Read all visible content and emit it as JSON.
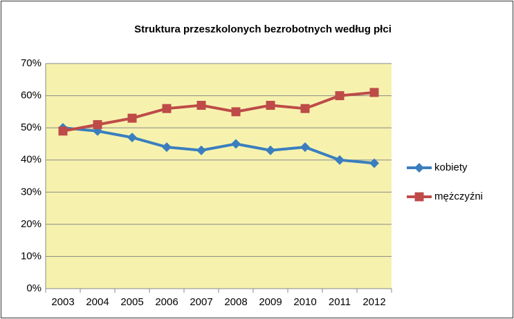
{
  "chart_data": {
    "type": "line",
    "title": "Struktura przeszkolonych bezrobotnych według płci",
    "categories": [
      "2003",
      "2004",
      "2005",
      "2006",
      "2007",
      "2008",
      "2009",
      "2010",
      "2011",
      "2012"
    ],
    "series": [
      {
        "name": "kobiety",
        "color": "#3a7ebf",
        "marker": "diamond",
        "values": [
          50,
          49,
          47,
          44,
          43,
          45,
          43,
          44,
          40,
          39
        ]
      },
      {
        "name": "mężczyźni",
        "color": "#be4b48",
        "marker": "square",
        "values": [
          49,
          51,
          53,
          56,
          57,
          55,
          57,
          56,
          60,
          61
        ]
      }
    ],
    "ylim": [
      0,
      70
    ],
    "yticks": [
      {
        "value": 0,
        "label": "0%"
      },
      {
        "value": 10,
        "label": "10%"
      },
      {
        "value": 20,
        "label": "20%"
      },
      {
        "value": 30,
        "label": "30%"
      },
      {
        "value": 40,
        "label": "40%"
      },
      {
        "value": 50,
        "label": "50%"
      },
      {
        "value": 60,
        "label": "60%"
      },
      {
        "value": 70,
        "label": "70%"
      }
    ],
    "grid": true,
    "legend": "right",
    "plot_background": "#f6f2ae"
  }
}
